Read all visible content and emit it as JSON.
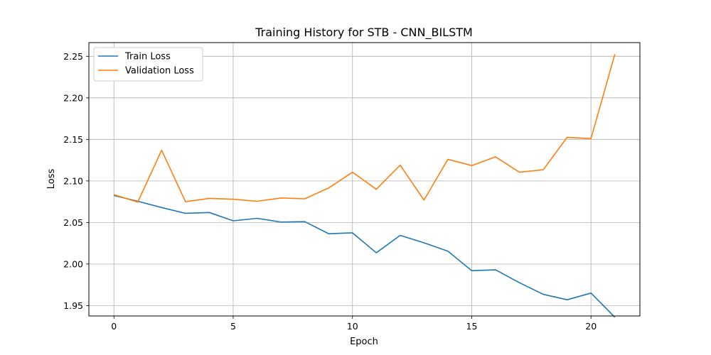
{
  "chart_data": {
    "type": "line",
    "title": "Training History for STB - CNN_BILSTM",
    "xlabel": "Epoch",
    "ylabel": "Loss",
    "xlim": [
      -1.05,
      22.05
    ],
    "ylim": [
      1.9375,
      2.2665
    ],
    "xticks": [
      0,
      5,
      10,
      15,
      20
    ],
    "xtick_labels": [
      "0",
      "5",
      "10",
      "15",
      "20"
    ],
    "yticks": [
      1.95,
      2.0,
      2.05,
      2.1,
      2.15,
      2.2,
      2.25
    ],
    "ytick_labels": [
      "1.95",
      "2.00",
      "2.05",
      "2.10",
      "2.15",
      "2.20",
      "2.25"
    ],
    "grid": true,
    "legend_position": "top-left",
    "x": [
      0,
      1,
      2,
      3,
      4,
      5,
      6,
      7,
      8,
      9,
      10,
      11,
      12,
      13,
      14,
      15,
      16,
      17,
      18,
      19,
      20,
      21
    ],
    "series": [
      {
        "name": "Train Loss",
        "color": "#1f77b4",
        "values": [
          2.0825,
          2.0755,
          2.068,
          2.061,
          2.062,
          2.052,
          2.055,
          2.0505,
          2.051,
          2.0365,
          2.0375,
          2.0135,
          2.0345,
          2.0255,
          2.0155,
          1.992,
          1.993,
          1.9775,
          1.9635,
          1.957,
          1.965,
          1.936
        ]
      },
      {
        "name": "Validation Loss",
        "color": "#ff7f0e",
        "values": [
          2.0835,
          2.0745,
          2.137,
          2.075,
          2.079,
          2.078,
          2.0755,
          2.0795,
          2.0785,
          2.0915,
          2.1105,
          2.09,
          2.119,
          2.077,
          2.126,
          2.1185,
          2.129,
          2.1105,
          2.1135,
          2.1525,
          2.151,
          2.2525
        ]
      }
    ]
  }
}
